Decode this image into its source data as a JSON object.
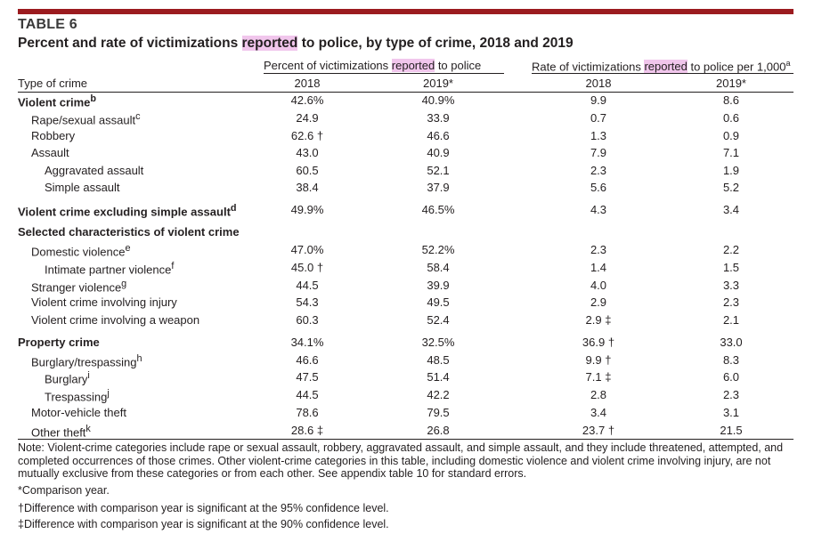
{
  "table": {
    "label": "TABLE 6",
    "title_before": "Percent and rate of victimizations ",
    "title_highlight": "reported",
    "title_after": " to police, by type of crime, 2018 and 2019",
    "group1": {
      "before": "Percent of victimizations ",
      "highlight": "reported",
      "after": " to police"
    },
    "group2": {
      "before": "Rate of victimizations ",
      "highlight": "reported",
      "after": " to police per 1,000",
      "sup": "a"
    },
    "first_col_header": "Type of crime",
    "years": [
      "2018",
      "2019*",
      "2018",
      "2019*"
    ],
    "rows": [
      {
        "label": "Violent crime",
        "sup": "b",
        "bold": true,
        "indent": 0,
        "values": [
          "42.6%",
          "40.9%",
          "9.9",
          "8.6"
        ]
      },
      {
        "label": "Rape/sexual assault",
        "sup": "c",
        "bold": false,
        "indent": 1,
        "values": [
          "24.9",
          "33.9",
          "0.7",
          "0.6"
        ]
      },
      {
        "label": "Robbery",
        "sup": "",
        "bold": false,
        "indent": 1,
        "values": [
          "62.6 †",
          "46.6",
          "1.3",
          "0.9"
        ]
      },
      {
        "label": "Assault",
        "sup": "",
        "bold": false,
        "indent": 1,
        "values": [
          "43.0",
          "40.9",
          "7.9",
          "7.1"
        ]
      },
      {
        "label": "Aggravated assault",
        "sup": "",
        "bold": false,
        "indent": 2,
        "values": [
          "60.5",
          "52.1",
          "2.3",
          "1.9"
        ]
      },
      {
        "label": "Simple assault",
        "sup": "",
        "bold": false,
        "indent": 2,
        "values": [
          "38.4",
          "37.9",
          "5.6",
          "5.2"
        ]
      },
      {
        "label": "Violent crime excluding simple assault",
        "sup": "d",
        "bold": true,
        "indent": 0,
        "values": [
          "49.9%",
          "46.5%",
          "4.3",
          "3.4"
        ]
      },
      {
        "label": "Selected characteristics of violent crime",
        "sup": "",
        "bold": true,
        "indent": 0,
        "values": [
          "",
          "",
          "",
          ""
        ]
      },
      {
        "label": "Domestic violence",
        "sup": "e",
        "bold": false,
        "indent": 1,
        "values": [
          "47.0%",
          "52.2%",
          "2.3",
          "2.2"
        ]
      },
      {
        "label": "Intimate partner violence",
        "sup": "f",
        "bold": false,
        "indent": 2,
        "values": [
          "45.0 †",
          "58.4",
          "1.4",
          "1.5"
        ]
      },
      {
        "label": "Stranger violence",
        "sup": "g",
        "bold": false,
        "indent": 1,
        "values": [
          "44.5",
          "39.9",
          "4.0",
          "3.3"
        ]
      },
      {
        "label": "Violent crime involving injury",
        "sup": "",
        "bold": false,
        "indent": 1,
        "values": [
          "54.3",
          "49.5",
          "2.9",
          "2.3"
        ]
      },
      {
        "label": "Violent crime involving a weapon",
        "sup": "",
        "bold": false,
        "indent": 1,
        "values": [
          "60.3",
          "52.4",
          "2.9 ‡",
          "2.1"
        ]
      },
      {
        "label": "Property crime",
        "sup": "",
        "bold": true,
        "indent": 0,
        "values": [
          "34.1%",
          "32.5%",
          "36.9 †",
          "33.0"
        ]
      },
      {
        "label": "Burglary/trespassing",
        "sup": "h",
        "bold": false,
        "indent": 1,
        "values": [
          "46.6",
          "48.5",
          "9.9 †",
          "8.3"
        ]
      },
      {
        "label": "Burglary",
        "sup": "i",
        "bold": false,
        "indent": 2,
        "values": [
          "47.5",
          "51.4",
          "7.1 ‡",
          "6.0"
        ]
      },
      {
        "label": "Trespassing",
        "sup": "j",
        "bold": false,
        "indent": 2,
        "values": [
          "44.5",
          "42.2",
          "2.8",
          "2.3"
        ]
      },
      {
        "label": "Motor-vehicle theft",
        "sup": "",
        "bold": false,
        "indent": 1,
        "values": [
          "78.6",
          "79.5",
          "3.4",
          "3.1"
        ]
      },
      {
        "label": "Other theft",
        "sup": "k",
        "bold": false,
        "indent": 1,
        "values": [
          "28.6 ‡",
          "26.8",
          "23.7 †",
          "21.5"
        ]
      }
    ]
  },
  "notes": {
    "note": "Note: Violent-crime categories include rape or sexual assault, robbery, aggravated assault, and simple assault, and they include threatened, attempted, and completed occurrences of those crimes. Other violent-crime categories in this table, including domestic violence and violent crime involving injury, are not mutually exclusive from these categories or from each other. See appendix table 10 for standard errors.",
    "comparison": "*Comparison year.",
    "dagger": "†Difference with comparison year is significant at the 95% confidence level.",
    "ddagger": "‡Difference with comparison year is significant at the 90% confidence level."
  },
  "colors": {
    "accent_bar": "#9b1b1f",
    "highlight": "#f1c6ec",
    "text": "#231f20"
  }
}
